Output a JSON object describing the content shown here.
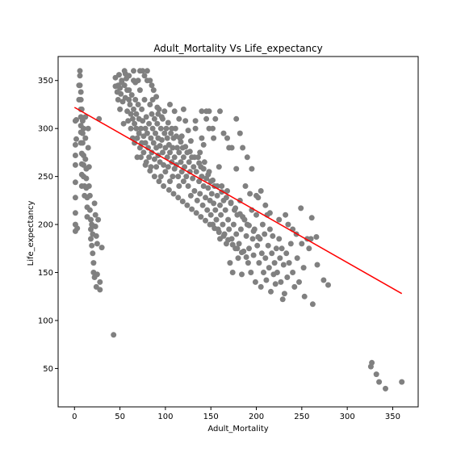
{
  "chart_data": {
    "type": "scatter",
    "title": "Adult_Mortality Vs Life_expectancy",
    "xlabel": "Adult_Mortality",
    "ylabel": "Life_expectancy",
    "xlim": [
      -18,
      378
    ],
    "ylim": [
      10,
      375
    ],
    "xticks": [
      0,
      50,
      100,
      150,
      200,
      250,
      300,
      350
    ],
    "yticks": [
      50,
      100,
      150,
      200,
      250,
      300,
      350
    ],
    "grid": false,
    "point_color": "#808080",
    "line_color": "#ff0000",
    "regression_line": {
      "x": [
        0,
        360
      ],
      "y": [
        322,
        128
      ]
    },
    "points": [
      [
        1,
        308
      ],
      [
        1,
        283
      ],
      [
        1,
        272
      ],
      [
        1,
        262
      ],
      [
        1,
        244
      ],
      [
        1,
        228
      ],
      [
        1,
        212
      ],
      [
        1,
        200
      ],
      [
        1,
        193
      ],
      [
        2,
        289
      ],
      [
        2,
        309
      ],
      [
        3,
        196
      ],
      [
        5,
        345
      ],
      [
        5,
        330
      ],
      [
        6,
        360
      ],
      [
        6,
        355
      ],
      [
        6,
        345
      ],
      [
        7,
        338
      ],
      [
        7,
        330
      ],
      [
        7,
        320
      ],
      [
        7,
        312
      ],
      [
        7,
        303
      ],
      [
        7,
        296
      ],
      [
        7,
        285
      ],
      [
        8,
        274
      ],
      [
        8,
        263
      ],
      [
        8,
        252
      ],
      [
        8,
        240
      ],
      [
        8,
        320
      ],
      [
        9,
        308
      ],
      [
        9,
        295
      ],
      [
        9,
        285
      ],
      [
        10,
        272
      ],
      [
        10,
        262
      ],
      [
        10,
        250
      ],
      [
        10,
        300
      ],
      [
        11,
        240
      ],
      [
        11,
        230
      ],
      [
        12,
        312
      ],
      [
        12,
        290
      ],
      [
        12,
        268
      ],
      [
        13,
        258
      ],
      [
        13,
        248
      ],
      [
        13,
        238
      ],
      [
        14,
        228
      ],
      [
        14,
        218
      ],
      [
        14,
        208
      ],
      [
        15,
        300
      ],
      [
        15,
        280
      ],
      [
        16,
        260
      ],
      [
        16,
        240
      ],
      [
        17,
        230
      ],
      [
        17,
        215
      ],
      [
        18,
        205
      ],
      [
        18,
        195
      ],
      [
        18,
        185
      ],
      [
        19,
        178
      ],
      [
        19,
        200
      ],
      [
        20,
        190
      ],
      [
        20,
        170
      ],
      [
        21,
        160
      ],
      [
        21,
        150
      ],
      [
        22,
        145
      ],
      [
        22,
        222
      ],
      [
        23,
        210
      ],
      [
        23,
        198
      ],
      [
        24,
        188
      ],
      [
        24,
        135
      ],
      [
        25,
        148
      ],
      [
        25,
        180
      ],
      [
        26,
        205
      ],
      [
        27,
        310
      ],
      [
        28,
        132
      ],
      [
        28,
        140
      ],
      [
        30,
        176
      ],
      [
        43,
        85
      ],
      [
        45,
        353
      ],
      [
        45,
        344
      ],
      [
        47,
        338
      ],
      [
        48,
        330
      ],
      [
        49,
        356
      ],
      [
        50,
        342
      ],
      [
        50,
        320
      ],
      [
        51,
        336
      ],
      [
        52,
        350
      ],
      [
        53,
        328
      ],
      [
        54,
        305
      ],
      [
        55,
        360
      ],
      [
        55,
        345
      ],
      [
        56,
        332
      ],
      [
        57,
        352
      ],
      [
        58,
        318
      ],
      [
        58,
        340
      ],
      [
        59,
        308
      ],
      [
        60,
        355
      ],
      [
        60,
        330
      ],
      [
        61,
        325
      ],
      [
        62,
        315
      ],
      [
        62,
        300
      ],
      [
        63,
        335
      ],
      [
        64,
        310
      ],
      [
        64,
        290
      ],
      [
        65,
        360
      ],
      [
        65,
        320
      ],
      [
        66,
        305
      ],
      [
        66,
        285
      ],
      [
        67,
        348
      ],
      [
        67,
        330
      ],
      [
        68,
        300
      ],
      [
        68,
        315
      ],
      [
        69,
        290
      ],
      [
        69,
        270
      ],
      [
        70,
        325
      ],
      [
        70,
        350
      ],
      [
        71,
        310
      ],
      [
        71,
        295
      ],
      [
        72,
        280
      ],
      [
        72,
        340
      ],
      [
        73,
        300
      ],
      [
        74,
        320
      ],
      [
        74,
        285
      ],
      [
        75,
        360
      ],
      [
        75,
        308
      ],
      [
        76,
        292
      ],
      [
        76,
        275
      ],
      [
        77,
        330
      ],
      [
        78,
        300
      ],
      [
        78,
        285
      ],
      [
        79,
        312
      ],
      [
        79,
        265
      ],
      [
        80,
        350
      ],
      [
        80,
        295
      ],
      [
        81,
        280
      ],
      [
        82,
        305
      ],
      [
        82,
        270
      ],
      [
        83,
        325
      ],
      [
        84,
        290
      ],
      [
        84,
        260
      ],
      [
        85,
        315
      ],
      [
        85,
        275
      ],
      [
        86,
        300
      ],
      [
        87,
        285
      ],
      [
        87,
        340
      ],
      [
        88,
        268
      ],
      [
        88,
        310
      ],
      [
        89,
        295
      ],
      [
        90,
        280
      ],
      [
        90,
        260
      ],
      [
        91,
        305
      ],
      [
        92,
        290
      ],
      [
        92,
        272
      ],
      [
        93,
        320
      ],
      [
        94,
        282
      ],
      [
        94,
        265
      ],
      [
        95,
        300
      ],
      [
        95,
        250
      ],
      [
        96,
        288
      ],
      [
        97,
        275
      ],
      [
        97,
        310
      ],
      [
        98,
        262
      ],
      [
        99,
        295
      ],
      [
        100,
        280
      ],
      [
        100,
        255
      ],
      [
        101,
        300
      ],
      [
        102,
        270
      ],
      [
        102,
        290
      ],
      [
        103,
        260
      ],
      [
        104,
        283
      ],
      [
        105,
        275
      ],
      [
        105,
        245
      ],
      [
        106,
        295
      ],
      [
        107,
        265
      ],
      [
        108,
        280
      ],
      [
        108,
        250
      ],
      [
        109,
        290
      ],
      [
        110,
        270
      ],
      [
        110,
        258
      ],
      [
        111,
        300
      ],
      [
        112,
        262
      ],
      [
        113,
        280
      ],
      [
        114,
        250
      ],
      [
        115,
        275
      ],
      [
        115,
        240
      ],
      [
        116,
        290
      ],
      [
        117,
        265
      ],
      [
        118,
        255
      ],
      [
        119,
        280
      ],
      [
        120,
        245
      ],
      [
        120,
        270
      ],
      [
        121,
        260
      ],
      [
        122,
        308
      ],
      [
        123,
        250
      ],
      [
        124,
        275
      ],
      [
        125,
        240
      ],
      [
        126,
        265
      ],
      [
        127,
        255
      ],
      [
        128,
        230
      ],
      [
        129,
        270
      ],
      [
        130,
        248
      ],
      [
        131,
        260
      ],
      [
        132,
        235
      ],
      [
        133,
        300
      ],
      [
        134,
        255
      ],
      [
        135,
        225
      ],
      [
        136,
        270
      ],
      [
        137,
        245
      ],
      [
        138,
        232
      ],
      [
        139,
        260
      ],
      [
        140,
        250
      ],
      [
        140,
        290
      ],
      [
        141,
        220
      ],
      [
        142,
        240
      ],
      [
        143,
        265
      ],
      [
        144,
        228
      ],
      [
        145,
        318
      ],
      [
        145,
        248
      ],
      [
        146,
        215
      ],
      [
        147,
        238
      ],
      [
        148,
        300
      ],
      [
        148,
        255
      ],
      [
        149,
        225
      ],
      [
        150,
        210
      ],
      [
        150,
        245
      ],
      [
        151,
        232
      ],
      [
        152,
        200
      ],
      [
        153,
        290
      ],
      [
        153,
        222
      ],
      [
        154,
        240
      ],
      [
        155,
        215
      ],
      [
        156,
        205
      ],
      [
        157,
        230
      ],
      [
        158,
        195
      ],
      [
        159,
        260
      ],
      [
        160,
        220
      ],
      [
        160,
        185
      ],
      [
        161,
        210
      ],
      [
        162,
        240
      ],
      [
        163,
        200
      ],
      [
        164,
        225
      ],
      [
        165,
        190
      ],
      [
        166,
        215
      ],
      [
        167,
        180
      ],
      [
        168,
        235
      ],
      [
        169,
        205
      ],
      [
        170,
        280
      ],
      [
        170,
        195
      ],
      [
        171,
        160
      ],
      [
        172,
        222
      ],
      [
        173,
        185
      ],
      [
        174,
        150
      ],
      [
        175,
        200
      ],
      [
        176,
        215
      ],
      [
        177,
        175
      ],
      [
        178,
        258
      ],
      [
        178,
        190
      ],
      [
        179,
        210
      ],
      [
        180,
        165
      ],
      [
        181,
        180
      ],
      [
        182,
        225
      ],
      [
        183,
        195
      ],
      [
        184,
        148
      ],
      [
        185,
        208
      ],
      [
        186,
        172
      ],
      [
        188,
        240
      ],
      [
        189,
        188
      ],
      [
        190,
        200
      ],
      [
        191,
        160
      ],
      [
        192,
        175
      ],
      [
        193,
        232
      ],
      [
        194,
        150
      ],
      [
        195,
        215
      ],
      [
        196,
        185
      ],
      [
        197,
        168
      ],
      [
        198,
        195
      ],
      [
        199,
        140
      ],
      [
        200,
        210
      ],
      [
        201,
        178
      ],
      [
        202,
        228
      ],
      [
        203,
        160
      ],
      [
        204,
        185
      ],
      [
        205,
        135
      ],
      [
        206,
        170
      ],
      [
        207,
        200
      ],
      [
        208,
        150
      ],
      [
        209,
        190
      ],
      [
        210,
        165
      ],
      [
        211,
        142
      ],
      [
        212,
        210
      ],
      [
        213,
        178
      ],
      [
        214,
        155
      ],
      [
        215,
        195
      ],
      [
        216,
        130
      ],
      [
        217,
        170
      ],
      [
        218,
        188
      ],
      [
        219,
        148
      ],
      [
        220,
        160
      ],
      [
        221,
        138
      ],
      [
        222,
        175
      ],
      [
        223,
        150
      ],
      [
        225,
        185
      ],
      [
        226,
        165
      ],
      [
        227,
        140
      ],
      [
        228,
        175
      ],
      [
        229,
        122
      ],
      [
        230,
        158
      ],
      [
        231,
        128
      ],
      [
        232,
        210
      ],
      [
        233,
        170
      ],
      [
        234,
        145
      ],
      [
        236,
        160
      ],
      [
        238,
        180
      ],
      [
        240,
        150
      ],
      [
        242,
        135
      ],
      [
        244,
        190
      ],
      [
        245,
        165
      ],
      [
        247,
        140
      ],
      [
        249,
        217
      ],
      [
        250,
        180
      ],
      [
        252,
        155
      ],
      [
        253,
        125
      ],
      [
        256,
        185
      ],
      [
        258,
        175
      ],
      [
        260,
        185
      ],
      [
        261,
        207
      ],
      [
        262,
        117
      ],
      [
        266,
        187
      ],
      [
        267,
        158
      ],
      [
        274,
        142
      ],
      [
        279,
        137
      ],
      [
        133,
        308
      ],
      [
        140,
        318
      ],
      [
        145,
        310
      ],
      [
        148,
        318
      ],
      [
        152,
        300
      ],
      [
        155,
        310
      ],
      [
        160,
        318
      ],
      [
        164,
        295
      ],
      [
        168,
        290
      ],
      [
        173,
        280
      ],
      [
        178,
        310
      ],
      [
        182,
        295
      ],
      [
        185,
        280
      ],
      [
        190,
        270
      ],
      [
        195,
        258
      ],
      [
        200,
        230
      ],
      [
        205,
        235
      ],
      [
        210,
        220
      ],
      [
        215,
        212
      ],
      [
        225,
        205
      ],
      [
        235,
        200
      ],
      [
        240,
        195
      ],
      [
        120,
        320
      ],
      [
        115,
        310
      ],
      [
        110,
        318
      ],
      [
        125,
        298
      ],
      [
        105,
        325
      ],
      [
        138,
        275
      ],
      [
        142,
        283
      ],
      [
        128,
        287
      ],
      [
        118,
        292
      ],
      [
        99,
        318
      ],
      [
        90,
        333
      ],
      [
        85,
        345
      ],
      [
        80,
        360
      ],
      [
        92,
        315
      ],
      [
        72,
        360
      ],
      [
        77,
        355
      ],
      [
        83,
        350
      ],
      [
        65,
        350
      ],
      [
        60,
        340
      ],
      [
        56,
        357
      ],
      [
        52,
        348
      ],
      [
        48,
        345
      ],
      [
        86,
        330
      ],
      [
        91,
        322
      ],
      [
        96,
        312
      ],
      [
        103,
        306
      ],
      [
        107,
        300
      ],
      [
        112,
        292
      ],
      [
        117,
        286
      ],
      [
        122,
        281
      ],
      [
        127,
        276
      ],
      [
        132,
        270
      ],
      [
        137,
        264
      ],
      [
        142,
        258
      ],
      [
        147,
        252
      ],
      [
        152,
        246
      ],
      [
        157,
        240
      ],
      [
        162,
        234
      ],
      [
        167,
        228
      ],
      [
        172,
        223
      ],
      [
        177,
        217
      ],
      [
        182,
        211
      ],
      [
        187,
        205
      ],
      [
        192,
        199
      ],
      [
        197,
        193
      ],
      [
        202,
        187
      ],
      [
        73,
        270
      ],
      [
        78,
        262
      ],
      [
        83,
        256
      ],
      [
        88,
        250
      ],
      [
        93,
        245
      ],
      [
        98,
        240
      ],
      [
        104,
        236
      ],
      [
        109,
        232
      ],
      [
        114,
        228
      ],
      [
        119,
        224
      ],
      [
        124,
        220
      ],
      [
        129,
        216
      ],
      [
        134,
        212
      ],
      [
        139,
        208
      ],
      [
        144,
        204
      ],
      [
        149,
        200
      ],
      [
        154,
        196
      ],
      [
        159,
        192
      ],
      [
        164,
        188
      ],
      [
        169,
        184
      ],
      [
        174,
        179
      ],
      [
        179,
        175
      ],
      [
        184,
        171
      ],
      [
        189,
        166
      ],
      [
        326,
        52
      ],
      [
        327,
        56
      ],
      [
        332,
        44
      ],
      [
        335,
        36
      ],
      [
        342,
        29
      ],
      [
        360,
        36
      ]
    ]
  }
}
